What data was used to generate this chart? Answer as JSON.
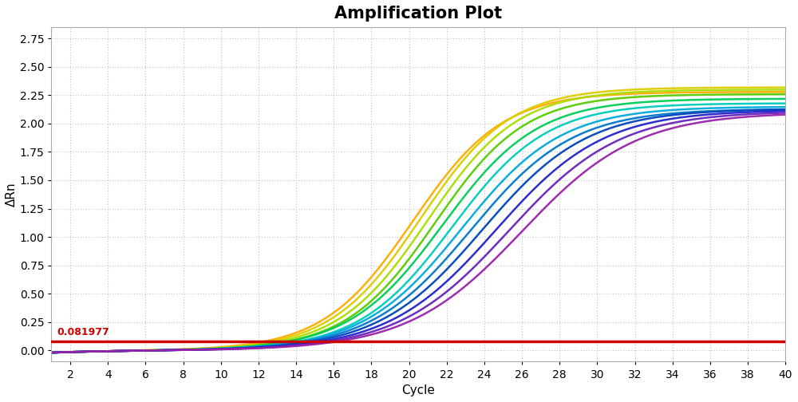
{
  "title": "Amplification Plot",
  "xlabel": "Cycle",
  "ylabel": "ΔRn",
  "xlim": [
    1,
    40
  ],
  "ylim": [
    -0.1,
    2.85
  ],
  "xticks": [
    2,
    4,
    6,
    8,
    10,
    12,
    14,
    16,
    18,
    20,
    22,
    24,
    26,
    28,
    30,
    32,
    34,
    36,
    38,
    40
  ],
  "yticks": [
    0.0,
    0.25,
    0.5,
    0.75,
    1.0,
    1.25,
    1.5,
    1.75,
    2.0,
    2.25,
    2.5,
    2.75
  ],
  "threshold": 0.081977,
  "threshold_color": "#cc0000",
  "background_color": "#ffffff",
  "grid_color": "#bbbbbb",
  "curves": [
    {
      "color": "#ffaa00",
      "midpoint": 20.2,
      "plateau": 2.28,
      "steepness": 0.42
    },
    {
      "color": "#ddcc00",
      "midpoint": 20.6,
      "plateau": 2.32,
      "steepness": 0.42
    },
    {
      "color": "#aadd00",
      "midpoint": 21.0,
      "plateau": 2.3,
      "steepness": 0.42
    },
    {
      "color": "#55cc00",
      "midpoint": 21.4,
      "plateau": 2.26,
      "steepness": 0.42
    },
    {
      "color": "#00cc55",
      "midpoint": 21.8,
      "plateau": 2.22,
      "steepness": 0.4
    },
    {
      "color": "#00ccbb",
      "midpoint": 22.3,
      "plateau": 2.18,
      "steepness": 0.4
    },
    {
      "color": "#00aadd",
      "midpoint": 22.8,
      "plateau": 2.15,
      "steepness": 0.38
    },
    {
      "color": "#0077cc",
      "midpoint": 23.3,
      "plateau": 2.13,
      "steepness": 0.37
    },
    {
      "color": "#0044bb",
      "midpoint": 23.9,
      "plateau": 2.13,
      "steepness": 0.36
    },
    {
      "color": "#2222cc",
      "midpoint": 24.6,
      "plateau": 2.12,
      "steepness": 0.35
    },
    {
      "color": "#6622bb",
      "midpoint": 25.3,
      "plateau": 2.11,
      "steepness": 0.34
    },
    {
      "color": "#9922aa",
      "midpoint": 26.0,
      "plateau": 2.1,
      "steepness": 0.33
    }
  ],
  "title_fontsize": 15,
  "axis_fontsize": 11,
  "tick_fontsize": 10
}
